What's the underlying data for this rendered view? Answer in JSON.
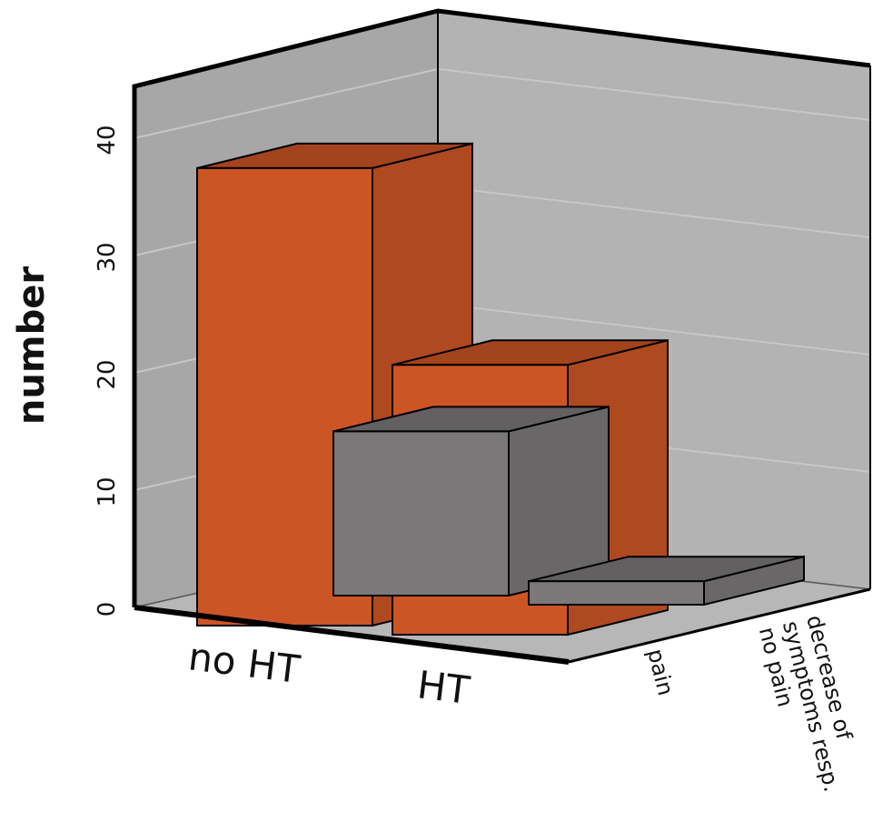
{
  "chart_data": {
    "type": "bar",
    "title": "",
    "xlabel": "",
    "ylabel": "number",
    "ylim": [
      0,
      40
    ],
    "yticks": [
      "0",
      "10",
      "20",
      "30",
      "40"
    ],
    "categories": [
      "no HT",
      "HT"
    ],
    "depth_categories": [
      "pain",
      "decrease of symptoms resp. no pain"
    ],
    "depth_label_lines": [
      "decrease of",
      "symptoms resp.",
      "no pain"
    ],
    "series": [
      {
        "values": [
          14,
          2
        ],
        "color": "#7a7878"
      },
      {
        "values": [
          39,
          23
        ],
        "color": "#cc5525"
      }
    ],
    "grid": true,
    "legend": "none"
  }
}
